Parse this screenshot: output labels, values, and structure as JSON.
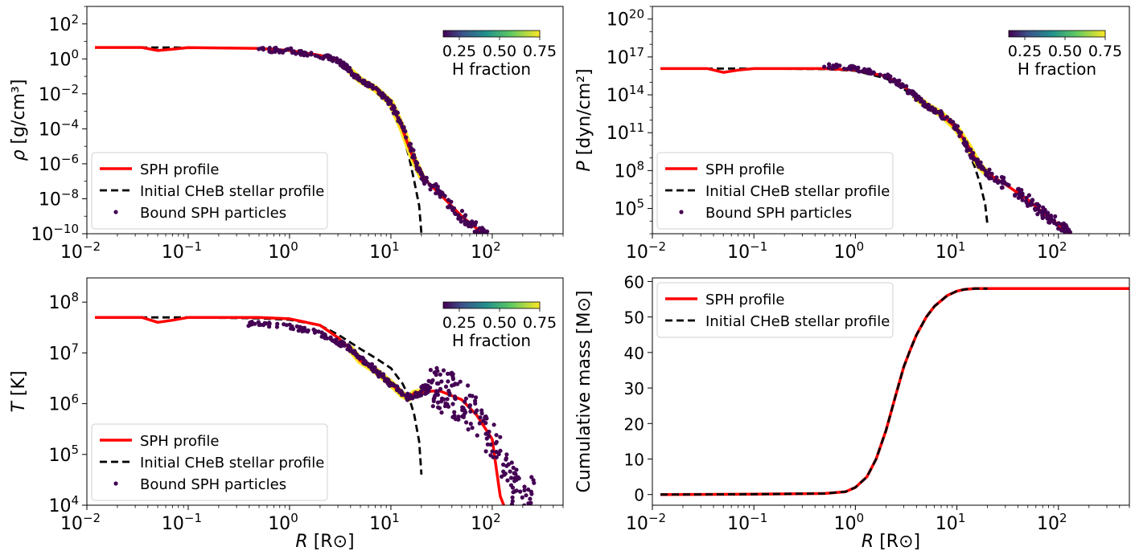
{
  "chart_data": [
    {
      "id": "density",
      "type": "line",
      "ylabel_var": "ρ",
      "ylabel_unit": "[g/cm³]",
      "xlog": true,
      "ylog": true,
      "xlim": [
        0.01,
        500
      ],
      "ylim": [
        1e-10,
        1000
      ],
      "x_ticks": [
        0.01,
        0.1,
        1,
        10,
        100
      ],
      "x_tick_labels": [
        {
          "base": "10",
          "exp": "−2"
        },
        {
          "base": "10",
          "exp": "−1"
        },
        {
          "base": "10",
          "exp": "0"
        },
        {
          "base": "10",
          "exp": "1"
        },
        {
          "base": "10",
          "exp": "2"
        }
      ],
      "y_ticks": [
        1e-10,
        1e-08,
        1e-06,
        0.0001,
        0.01,
        1,
        100
      ],
      "y_tick_labels": [
        {
          "base": "10",
          "exp": "−10"
        },
        {
          "base": "10",
          "exp": "−8"
        },
        {
          "base": "10",
          "exp": "−6"
        },
        {
          "base": "10",
          "exp": "−4"
        },
        {
          "base": "10",
          "exp": "−2"
        },
        {
          "base": "10",
          "exp": "0"
        },
        {
          "base": "10",
          "exp": "2"
        }
      ],
      "legend_position": "lower-left",
      "legend": [
        "SPH profile",
        "Initial CHeB stellar profile",
        "Bound SPH particles"
      ],
      "colorbar": {
        "label": "H fraction",
        "ticks": [
          "0.25",
          "0.50",
          "0.75"
        ],
        "range": [
          0.15,
          0.75
        ]
      },
      "series": [
        {
          "name": "Initial CHeB stellar profile",
          "style": "dashed",
          "color": "#000000",
          "x": [
            0.012,
            0.05,
            0.1,
            0.5,
            1,
            2,
            3,
            4,
            5,
            7,
            10,
            13,
            15,
            17,
            19,
            20
          ],
          "y": [
            4.5,
            4.5,
            4.4,
            4.0,
            3.0,
            1.6,
            0.8,
            0.25,
            0.07,
            0.02,
            0.003,
            5e-05,
            3e-06,
            1e-07,
            4e-09,
            1e-10
          ]
        },
        {
          "name": "SPH profile",
          "style": "solid",
          "color": "#ff0000",
          "x": [
            0.012,
            0.035,
            0.05,
            0.07,
            0.1,
            0.5,
            1,
            2,
            3,
            4,
            5,
            7,
            10,
            13,
            15,
            17,
            20,
            30,
            50,
            70,
            100
          ],
          "y": [
            4.5,
            4.5,
            3.0,
            3.6,
            4.4,
            4.0,
            3.0,
            1.6,
            0.9,
            0.2,
            0.06,
            0.02,
            0.003,
            0.0001,
            1e-05,
            1.5e-06,
            2e-07,
            2e-08,
            1e-09,
            2e-10,
            5e-11
          ]
        },
        {
          "name": "Bound SPH particles",
          "style": "scatter",
          "color": "#440154",
          "x": [
            0.5,
            1,
            2,
            3,
            4,
            5,
            7,
            10,
            14,
            20,
            30,
            50,
            70,
            100
          ],
          "y": [
            3.5,
            3.0,
            1.5,
            0.8,
            0.2,
            0.06,
            0.02,
            0.003,
            5e-05,
            2e-07,
            2e-08,
            1e-09,
            2e-10,
            5e-11
          ]
        }
      ]
    },
    {
      "id": "pressure",
      "type": "line",
      "ylabel_var": "P",
      "ylabel_unit": "[dyn/cm²]",
      "xlog": true,
      "ylog": true,
      "xlim": [
        0.01,
        500
      ],
      "ylim": [
        1000.0,
        1e+21
      ],
      "x_ticks": [
        0.01,
        0.1,
        1,
        10,
        100
      ],
      "x_tick_labels": [
        {
          "base": "10",
          "exp": "−2"
        },
        {
          "base": "10",
          "exp": "−1"
        },
        {
          "base": "10",
          "exp": "0"
        },
        {
          "base": "10",
          "exp": "1"
        },
        {
          "base": "10",
          "exp": "2"
        }
      ],
      "y_ticks": [
        100000.0,
        100000000.0,
        100000000000.0,
        100000000000000.0,
        1e+17,
        1e+20
      ],
      "y_tick_labels": [
        {
          "base": "10",
          "exp": "5"
        },
        {
          "base": "10",
          "exp": "8"
        },
        {
          "base": "10",
          "exp": "11"
        },
        {
          "base": "10",
          "exp": "14"
        },
        {
          "base": "10",
          "exp": "17"
        },
        {
          "base": "10",
          "exp": "20"
        }
      ],
      "legend_position": "lower-left",
      "legend": [
        "SPH profile",
        "Initial CHeB stellar profile",
        "Bound SPH particles"
      ],
      "colorbar": {
        "label": "H fraction",
        "ticks": [
          "0.25",
          "0.50",
          "0.75"
        ],
        "range": [
          0.15,
          0.75
        ]
      },
      "series": [
        {
          "name": "Initial CHeB stellar profile",
          "style": "dashed",
          "color": "#000000",
          "x": [
            0.012,
            0.05,
            0.1,
            0.5,
            1,
            2,
            3,
            4,
            5,
            7,
            10,
            13,
            15,
            17,
            19,
            20
          ],
          "y": [
            1.2e+16,
            1.2e+16,
            1.2e+16,
            1.1e+16,
            8000000000000000.0,
            2000000000000000.0,
            300000000000000.0,
            40000000000000.0,
            10000000000000.0,
            2000000000000.0,
            100000000000.0,
            3000000000.0,
            200000000.0,
            8000000.0,
            200000.0,
            5000.0
          ]
        },
        {
          "name": "SPH profile",
          "style": "solid",
          "color": "#ff0000",
          "x": [
            0.012,
            0.035,
            0.05,
            0.07,
            0.1,
            0.5,
            1,
            2,
            3,
            4,
            5,
            7,
            10,
            13,
            15,
            17,
            20,
            30,
            50,
            70,
            100,
            120
          ],
          "y": [
            1.2e+16,
            1.2e+16,
            6000000000000000.0,
            9000000000000000.0,
            1.2e+16,
            1.2e+16,
            9000000000000000.0,
            3000000000000000.0,
            500000000000000.0,
            60000000000000.0,
            15000000000000.0,
            3000000000000.0,
            200000000000.0,
            8000000000.0,
            1000000000.0,
            200000000.0,
            60000000.0,
            8000000.0,
            500000.0,
            50000.0,
            5000.0,
            1000.0
          ]
        },
        {
          "name": "Bound SPH particles",
          "style": "scatter",
          "color": "#440154",
          "x": [
            0.5,
            1,
            2,
            3,
            4,
            5,
            7,
            10,
            14,
            20,
            30,
            50,
            70,
            100,
            130
          ],
          "y": [
            2e+16,
            1.2e+16,
            3000000000000000.0,
            500000000000000.0,
            60000000000000.0,
            15000000000000.0,
            3000000000000.0,
            200000000000.0,
            1500000000.0,
            60000000.0,
            8000000.0,
            500000.0,
            50000.0,
            5000.0,
            2000.0
          ]
        }
      ]
    },
    {
      "id": "temperature",
      "type": "line",
      "ylabel_var": "T",
      "ylabel_unit": "[K]",
      "xlabel_var": "R",
      "xlabel_unit": "[R⊙]",
      "xlog": true,
      "ylog": true,
      "xlim": [
        0.01,
        500
      ],
      "ylim": [
        10000.0,
        300000000.0
      ],
      "x_ticks": [
        0.01,
        0.1,
        1,
        10,
        100
      ],
      "x_tick_labels": [
        {
          "base": "10",
          "exp": "−2"
        },
        {
          "base": "10",
          "exp": "−1"
        },
        {
          "base": "10",
          "exp": "0"
        },
        {
          "base": "10",
          "exp": "1"
        },
        {
          "base": "10",
          "exp": "2"
        }
      ],
      "y_ticks": [
        10000.0,
        100000.0,
        1000000.0,
        10000000.0,
        100000000.0
      ],
      "y_tick_labels": [
        {
          "base": "10",
          "exp": "4"
        },
        {
          "base": "10",
          "exp": "5"
        },
        {
          "base": "10",
          "exp": "6"
        },
        {
          "base": "10",
          "exp": "7"
        },
        {
          "base": "10",
          "exp": "8"
        }
      ],
      "legend_position": "lower-left",
      "legend": [
        "SPH profile",
        "Initial CHeB stellar profile",
        "Bound SPH particles"
      ],
      "colorbar": {
        "label": "H fraction",
        "ticks": [
          "0.25",
          "0.50",
          "0.75"
        ],
        "range": [
          0.15,
          0.75
        ]
      },
      "series": [
        {
          "name": "Initial CHeB stellar profile",
          "style": "dashed",
          "color": "#000000",
          "x": [
            0.012,
            0.05,
            0.1,
            0.5,
            1,
            2,
            3,
            4,
            5,
            7,
            10,
            13,
            15,
            17,
            19,
            20
          ],
          "y": [
            50000000.0,
            50000000.0,
            50000000.0,
            48000000.0,
            45000000.0,
            35000000.0,
            23000000.0,
            16000000.0,
            12000000.0,
            8000000.0,
            5000000.0,
            2500000.0,
            1400000.0,
            600000.0,
            180000.0,
            40000.0
          ]
        },
        {
          "name": "SPH profile",
          "style": "solid",
          "color": "#ff0000",
          "x": [
            0.012,
            0.035,
            0.05,
            0.07,
            0.1,
            0.5,
            1,
            2,
            3,
            4,
            5,
            7,
            10,
            13,
            15,
            17,
            20,
            30,
            50,
            70,
            100,
            110,
            120,
            130
          ],
          "y": [
            50000000.0,
            50000000.0,
            40000000.0,
            44000000.0,
            50000000.0,
            50000000.0,
            47000000.0,
            35000000.0,
            20000000.0,
            12000000.0,
            7000000.0,
            4500000.0,
            2500000.0,
            1500000.0,
            1300000.0,
            1600000.0,
            1700000.0,
            1800000.0,
            1200000.0,
            600000.0,
            200000.0,
            50000.0,
            15000.0,
            10000.0
          ]
        },
        {
          "name": "Bound SPH particles",
          "style": "scatter",
          "color": "#440154",
          "x": [
            0.4,
            1,
            2,
            3,
            4,
            5,
            7,
            10,
            15,
            20,
            25,
            30,
            40,
            50,
            70,
            100,
            150,
            200,
            280
          ],
          "y": [
            38000000.0,
            33000000.0,
            25000000.0,
            16000000.0,
            12000000.0,
            8000000.0,
            4500000.0,
            2500000.0,
            1300000.0,
            1600000.0,
            2500000.0,
            2000000.0,
            1500000.0,
            1100000.0,
            600000.0,
            200000.0,
            30000.0,
            15000.0,
            12000.0
          ]
        }
      ]
    },
    {
      "id": "mass",
      "type": "line",
      "ylabel": "Cumulative mass [M⊙]",
      "ylabel_var": "Cumulative mass",
      "ylabel_unit": "[M⊙]",
      "xlabel_var": "R",
      "xlabel_unit": "[R⊙]",
      "xlog": true,
      "ylog": false,
      "xlim": [
        0.01,
        500
      ],
      "ylim": [
        -3,
        61
      ],
      "x_ticks": [
        0.01,
        0.1,
        1,
        10,
        100
      ],
      "x_tick_labels": [
        {
          "base": "10",
          "exp": "−2"
        },
        {
          "base": "10",
          "exp": "−1"
        },
        {
          "base": "10",
          "exp": "0"
        },
        {
          "base": "10",
          "exp": "1"
        },
        {
          "base": "10",
          "exp": "2"
        }
      ],
      "y_ticks": [
        0,
        10,
        20,
        30,
        40,
        50,
        60
      ],
      "y_tick_labels": [
        "0",
        "10",
        "20",
        "30",
        "40",
        "50",
        "60"
      ],
      "legend_position": "upper-left",
      "legend": [
        "SPH profile",
        "Initial CHeB stellar profile"
      ],
      "series": [
        {
          "name": "SPH profile",
          "style": "solid",
          "color": "#ff0000",
          "x": [
            0.012,
            0.1,
            0.5,
            0.8,
            1,
            1.3,
            1.6,
            2,
            2.5,
            3,
            3.5,
            4,
            5,
            6,
            8,
            10,
            12,
            15,
            20,
            100,
            500
          ],
          "y": [
            0,
            0.1,
            0.3,
            0.8,
            2,
            5,
            10,
            18,
            28,
            36,
            41,
            45,
            50,
            53,
            56,
            57.3,
            57.8,
            58,
            58,
            58,
            58
          ]
        },
        {
          "name": "Initial CHeB stellar profile",
          "style": "dashed",
          "color": "#000000",
          "x": [
            0.012,
            0.1,
            0.5,
            0.8,
            1,
            1.3,
            1.6,
            2,
            2.5,
            3,
            3.5,
            4,
            5,
            6,
            8,
            10,
            12,
            15,
            20
          ],
          "y": [
            0,
            0.1,
            0.3,
            0.8,
            2,
            5,
            10,
            18,
            28,
            36,
            41,
            45,
            50,
            53,
            56,
            57.3,
            57.8,
            58,
            58
          ]
        }
      ]
    }
  ]
}
